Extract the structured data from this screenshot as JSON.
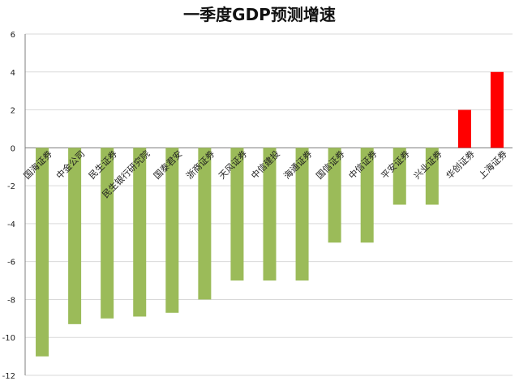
{
  "chart_data": {
    "type": "bar",
    "title": "一季度GDP预测增速",
    "xlabel": "",
    "ylabel": "",
    "ylim": [
      -12,
      6
    ],
    "yticks": [
      6,
      4,
      2,
      0,
      -2,
      -4,
      -6,
      -8,
      -10,
      -12
    ],
    "grid": true,
    "legend": "none",
    "categories": [
      "国海证券",
      "中金公司",
      "民生证券",
      "民生银行研究院",
      "国泰君安",
      "浙商证券",
      "天风证券",
      "中信建投",
      "海通证券",
      "国信证券",
      "中信证券",
      "平安证券",
      "兴业证券",
      "华创证券",
      "上海证券"
    ],
    "values": [
      -11,
      -9.3,
      -9,
      -8.9,
      -8.7,
      -8,
      -7,
      -7,
      -7,
      -5,
      -5,
      -3,
      -3,
      2,
      4
    ],
    "colors": {
      "negative": "#9bbb59",
      "positive": "#ff0000",
      "grid": "#d9d9d9",
      "axis": "#7f7f7f"
    }
  }
}
